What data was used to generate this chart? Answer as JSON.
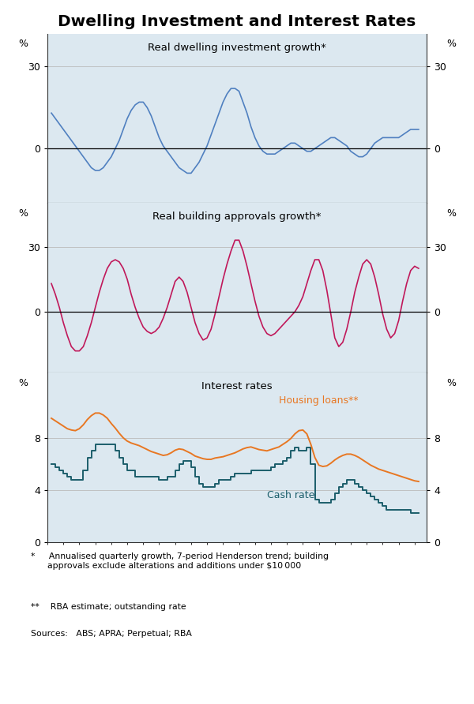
{
  "title": "Dwelling Investment and Interest Rates",
  "bg_color": "#dce8f0",
  "panel1_title": "Real dwelling investment growth*",
  "panel2_title": "Real building approvals growth*",
  "panel3_title": "Interest rates",
  "panel1_ylim": [
    -20,
    40
  ],
  "panel2_ylim": [
    -25,
    45
  ],
  "panel3_ylim": [
    0,
    12
  ],
  "xlim": [
    1992.0,
    2015.75
  ],
  "xticks": [
    1995,
    1999,
    2003,
    2007,
    2011,
    2015
  ],
  "footnote1": "*     Annualised quarterly growth, 7-period Henderson trend; building\n      approvals exclude alterations and additions under $10 000",
  "footnote2": "**    RBA estimate; outstanding rate",
  "sources": "Sources:   ABS; APRA; Perpetual; RBA",
  "housing_label": "Housing loans**",
  "cash_label": "Cash rate",
  "housing_color": "#E87722",
  "cash_color": "#1B5E6B",
  "dwelling_color": "#5080C0",
  "approvals_color": "#C0185A",
  "dwelling_x": [
    1992.25,
    1992.5,
    1992.75,
    1993.0,
    1993.25,
    1993.5,
    1993.75,
    1994.0,
    1994.25,
    1994.5,
    1994.75,
    1995.0,
    1995.25,
    1995.5,
    1995.75,
    1996.0,
    1996.25,
    1996.5,
    1996.75,
    1997.0,
    1997.25,
    1997.5,
    1997.75,
    1998.0,
    1998.25,
    1998.5,
    1998.75,
    1999.0,
    1999.25,
    1999.5,
    1999.75,
    2000.0,
    2000.25,
    2000.5,
    2000.75,
    2001.0,
    2001.25,
    2001.5,
    2001.75,
    2002.0,
    2002.25,
    2002.5,
    2002.75,
    2003.0,
    2003.25,
    2003.5,
    2003.75,
    2004.0,
    2004.25,
    2004.5,
    2004.75,
    2005.0,
    2005.25,
    2005.5,
    2005.75,
    2006.0,
    2006.25,
    2006.5,
    2006.75,
    2007.0,
    2007.25,
    2007.5,
    2007.75,
    2008.0,
    2008.25,
    2008.5,
    2008.75,
    2009.0,
    2009.25,
    2009.5,
    2009.75,
    2010.0,
    2010.25,
    2010.5,
    2010.75,
    2011.0,
    2011.25,
    2011.5,
    2011.75,
    2012.0,
    2012.25,
    2012.5,
    2012.75,
    2013.0,
    2013.25,
    2013.5,
    2013.75,
    2014.0,
    2014.25,
    2014.5,
    2014.75,
    2015.0,
    2015.25
  ],
  "dwelling_y": [
    13,
    11,
    9,
    7,
    5,
    3,
    1,
    -1,
    -3,
    -5,
    -7,
    -8,
    -8,
    -7,
    -5,
    -3,
    0,
    3,
    7,
    11,
    14,
    16,
    17,
    17,
    15,
    12,
    8,
    4,
    1,
    -1,
    -3,
    -5,
    -7,
    -8,
    -9,
    -9,
    -7,
    -5,
    -2,
    1,
    5,
    9,
    13,
    17,
    20,
    22,
    22,
    21,
    17,
    13,
    8,
    4,
    1,
    -1,
    -2,
    -2,
    -2,
    -1,
    0,
    1,
    2,
    2,
    1,
    0,
    -1,
    -1,
    0,
    1,
    2,
    3,
    4,
    4,
    3,
    2,
    1,
    -1,
    -2,
    -3,
    -3,
    -2,
    0,
    2,
    3,
    4,
    4,
    4,
    4,
    4,
    5,
    6,
    7,
    7,
    7
  ],
  "approvals_x": [
    1992.25,
    1992.5,
    1992.75,
    1993.0,
    1993.25,
    1993.5,
    1993.75,
    1994.0,
    1994.25,
    1994.5,
    1994.75,
    1995.0,
    1995.25,
    1995.5,
    1995.75,
    1996.0,
    1996.25,
    1996.5,
    1996.75,
    1997.0,
    1997.25,
    1997.5,
    1997.75,
    1998.0,
    1998.25,
    1998.5,
    1998.75,
    1999.0,
    1999.25,
    1999.5,
    1999.75,
    2000.0,
    2000.25,
    2000.5,
    2000.75,
    2001.0,
    2001.25,
    2001.5,
    2001.75,
    2002.0,
    2002.25,
    2002.5,
    2002.75,
    2003.0,
    2003.25,
    2003.5,
    2003.75,
    2004.0,
    2004.25,
    2004.5,
    2004.75,
    2005.0,
    2005.25,
    2005.5,
    2005.75,
    2006.0,
    2006.25,
    2006.5,
    2006.75,
    2007.0,
    2007.25,
    2007.5,
    2007.75,
    2008.0,
    2008.25,
    2008.5,
    2008.75,
    2009.0,
    2009.25,
    2009.5,
    2009.75,
    2010.0,
    2010.25,
    2010.5,
    2010.75,
    2011.0,
    2011.25,
    2011.5,
    2011.75,
    2012.0,
    2012.25,
    2012.5,
    2012.75,
    2013.0,
    2013.25,
    2013.5,
    2013.75,
    2014.0,
    2014.25,
    2014.5,
    2014.75,
    2015.0,
    2015.25
  ],
  "approvals_y": [
    13,
    8,
    2,
    -5,
    -11,
    -16,
    -18,
    -18,
    -16,
    -11,
    -5,
    2,
    9,
    15,
    20,
    23,
    24,
    23,
    20,
    15,
    8,
    2,
    -3,
    -7,
    -9,
    -10,
    -9,
    -7,
    -3,
    2,
    8,
    14,
    16,
    14,
    9,
    2,
    -5,
    -10,
    -13,
    -12,
    -8,
    -1,
    7,
    15,
    22,
    28,
    33,
    33,
    28,
    21,
    13,
    5,
    -2,
    -7,
    -10,
    -11,
    -10,
    -8,
    -6,
    -4,
    -2,
    0,
    3,
    7,
    13,
    19,
    24,
    24,
    19,
    10,
    -1,
    -12,
    -16,
    -14,
    -8,
    0,
    9,
    16,
    22,
    24,
    22,
    16,
    8,
    -1,
    -8,
    -12,
    -10,
    -4,
    5,
    13,
    19,
    21,
    20
  ],
  "housing_x": [
    1992.25,
    1992.5,
    1992.75,
    1993.0,
    1993.25,
    1993.5,
    1993.75,
    1994.0,
    1994.25,
    1994.5,
    1994.75,
    1995.0,
    1995.25,
    1995.5,
    1995.75,
    1996.0,
    1996.25,
    1996.5,
    1996.75,
    1997.0,
    1997.25,
    1997.5,
    1997.75,
    1998.0,
    1998.25,
    1998.5,
    1998.75,
    1999.0,
    1999.25,
    1999.5,
    1999.75,
    2000.0,
    2000.25,
    2000.5,
    2000.75,
    2001.0,
    2001.25,
    2001.5,
    2001.75,
    2002.0,
    2002.25,
    2002.5,
    2002.75,
    2003.0,
    2003.25,
    2003.5,
    2003.75,
    2004.0,
    2004.25,
    2004.5,
    2004.75,
    2005.0,
    2005.25,
    2005.5,
    2005.75,
    2006.0,
    2006.25,
    2006.5,
    2006.75,
    2007.0,
    2007.25,
    2007.5,
    2007.75,
    2008.0,
    2008.25,
    2008.5,
    2008.75,
    2009.0,
    2009.25,
    2009.5,
    2009.75,
    2010.0,
    2010.25,
    2010.5,
    2010.75,
    2011.0,
    2011.25,
    2011.5,
    2011.75,
    2012.0,
    2012.25,
    2012.5,
    2012.75,
    2013.0,
    2013.25,
    2013.5,
    2013.75,
    2014.0,
    2014.25,
    2014.5,
    2014.75,
    2015.0,
    2015.25
  ],
  "housing_y": [
    9.5,
    9.3,
    9.1,
    8.9,
    8.7,
    8.6,
    8.55,
    8.7,
    9.0,
    9.4,
    9.7,
    9.9,
    9.9,
    9.75,
    9.5,
    9.1,
    8.75,
    8.35,
    8.0,
    7.75,
    7.6,
    7.5,
    7.4,
    7.25,
    7.1,
    6.95,
    6.85,
    6.75,
    6.65,
    6.7,
    6.85,
    7.05,
    7.15,
    7.1,
    6.95,
    6.8,
    6.6,
    6.5,
    6.4,
    6.35,
    6.35,
    6.45,
    6.5,
    6.55,
    6.65,
    6.75,
    6.85,
    7.0,
    7.15,
    7.25,
    7.3,
    7.2,
    7.1,
    7.05,
    7.0,
    7.1,
    7.2,
    7.3,
    7.5,
    7.7,
    7.95,
    8.3,
    8.55,
    8.6,
    8.3,
    7.5,
    6.5,
    5.9,
    5.8,
    5.85,
    6.05,
    6.3,
    6.5,
    6.65,
    6.75,
    6.75,
    6.65,
    6.5,
    6.3,
    6.1,
    5.9,
    5.75,
    5.6,
    5.5,
    5.4,
    5.3,
    5.2,
    5.1,
    5.0,
    4.9,
    4.8,
    4.7,
    4.65
  ],
  "cash_x": [
    1992.25,
    1992.5,
    1992.75,
    1993.0,
    1993.25,
    1993.5,
    1993.75,
    1994.0,
    1994.25,
    1994.5,
    1994.75,
    1995.0,
    1995.25,
    1995.5,
    1995.75,
    1996.0,
    1996.25,
    1996.5,
    1996.75,
    1997.0,
    1997.25,
    1997.5,
    1997.75,
    1998.0,
    1998.25,
    1998.5,
    1998.75,
    1999.0,
    1999.25,
    1999.5,
    1999.75,
    2000.0,
    2000.25,
    2000.5,
    2000.75,
    2001.0,
    2001.25,
    2001.5,
    2001.75,
    2002.0,
    2002.25,
    2002.5,
    2002.75,
    2003.0,
    2003.25,
    2003.5,
    2003.75,
    2004.0,
    2004.25,
    2004.5,
    2004.75,
    2005.0,
    2005.25,
    2005.5,
    2005.75,
    2006.0,
    2006.25,
    2006.5,
    2006.75,
    2007.0,
    2007.25,
    2007.5,
    2007.75,
    2008.0,
    2008.25,
    2008.5,
    2008.75,
    2009.0,
    2009.25,
    2009.5,
    2009.75,
    2010.0,
    2010.25,
    2010.5,
    2010.75,
    2011.0,
    2011.25,
    2011.5,
    2011.75,
    2012.0,
    2012.25,
    2012.5,
    2012.75,
    2013.0,
    2013.25,
    2013.5,
    2013.75,
    2014.0,
    2014.25,
    2014.5,
    2014.75,
    2015.0,
    2015.25
  ],
  "cash_y": [
    6.0,
    5.75,
    5.5,
    5.25,
    5.0,
    4.75,
    4.75,
    4.75,
    5.5,
    6.5,
    7.0,
    7.5,
    7.5,
    7.5,
    7.5,
    7.5,
    7.0,
    6.5,
    6.0,
    5.5,
    5.5,
    5.0,
    5.0,
    5.0,
    5.0,
    5.0,
    5.0,
    4.75,
    4.75,
    5.0,
    5.0,
    5.5,
    6.0,
    6.25,
    6.25,
    5.75,
    5.0,
    4.5,
    4.25,
    4.25,
    4.25,
    4.5,
    4.75,
    4.75,
    4.75,
    5.0,
    5.25,
    5.25,
    5.25,
    5.25,
    5.5,
    5.5,
    5.5,
    5.5,
    5.5,
    5.75,
    6.0,
    6.0,
    6.25,
    6.5,
    7.0,
    7.25,
    7.0,
    7.0,
    7.25,
    6.0,
    3.25,
    3.0,
    3.0,
    3.0,
    3.25,
    3.75,
    4.25,
    4.5,
    4.75,
    4.75,
    4.5,
    4.25,
    4.0,
    3.75,
    3.5,
    3.25,
    3.0,
    2.75,
    2.5,
    2.5,
    2.5,
    2.5,
    2.5,
    2.5,
    2.25,
    2.25,
    2.25
  ]
}
